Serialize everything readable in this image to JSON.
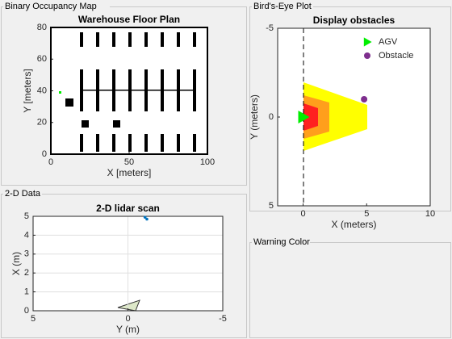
{
  "panels": [
    "Binary Occupancy Map",
    "Bird's-Eye Plot",
    "2-D Data",
    "Warning Color"
  ],
  "chart_data": [
    {
      "type": "occupancy",
      "title": "Warehouse Floor Plan",
      "xlabel": "X [meters]",
      "ylabel": "Y [meters]",
      "xlim": [
        0,
        100
      ],
      "ylim": [
        0,
        80
      ],
      "xticks": [
        0,
        50,
        100
      ],
      "yticks": [
        0,
        20,
        40,
        60,
        80
      ]
    },
    {
      "type": "scatter",
      "title": "Display obstacles",
      "xlabel": "X (meters)",
      "ylabel": "Y (meters)",
      "xlim": [
        -2,
        10
      ],
      "ylim": [
        -5,
        5
      ],
      "y_reversed": true,
      "xticks": [
        0,
        5,
        10
      ],
      "yticks": [
        -5,
        0,
        5
      ],
      "legend": "upper-right",
      "series": [
        {
          "name": "AGV",
          "color": "#00ee00",
          "marker": "triangle",
          "x": [
            0
          ],
          "y": [
            0
          ]
        },
        {
          "name": "Obstacle",
          "color": "#7e2f8e",
          "marker": "circle",
          "x": [
            4.8
          ],
          "y": [
            -1
          ]
        }
      ]
    },
    {
      "type": "scatter",
      "title": "2-D lidar scan",
      "xlabel": "Y (m)",
      "ylabel": "X (m)",
      "xlim": [
        -5,
        5
      ],
      "x_reversed": true,
      "ylim": [
        0,
        5
      ],
      "xticks": [
        5,
        0,
        -5
      ],
      "yticks": [
        0,
        1,
        2,
        3,
        4,
        5
      ],
      "grid": true,
      "series": [
        {
          "color": "#0072bd",
          "marker": "dot",
          "x": [
            -0.9,
            -1.0
          ],
          "y": [
            4.95,
            4.85
          ]
        }
      ]
    }
  ]
}
